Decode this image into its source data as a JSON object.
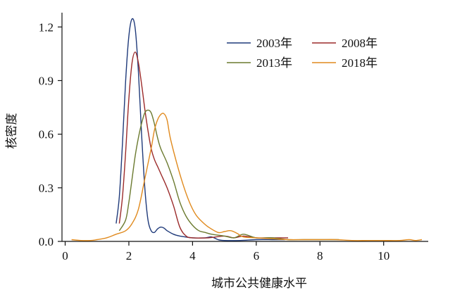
{
  "chart_data": {
    "type": "line",
    "title": "",
    "xlabel": "城市公共健康水平",
    "ylabel": "核密度",
    "xlim": [
      -0.1,
      11.4
    ],
    "ylim": [
      0,
      1.28
    ],
    "xticks": [
      0,
      2,
      4,
      6,
      8,
      10
    ],
    "xtick_labels": [
      "0",
      "2",
      "4",
      "6",
      "8",
      "10"
    ],
    "yticks": [
      0,
      0.3,
      0.6,
      0.9,
      1.2
    ],
    "ytick_labels": [
      "0.0",
      "0.3",
      "0.6",
      "0.9",
      "1.2"
    ],
    "grid": false,
    "legend_position": "top-right",
    "series": [
      {
        "name": "2003年",
        "color": "#1f3a7a",
        "points": [
          [
            1.6,
            0.1
          ],
          [
            1.7,
            0.25
          ],
          [
            1.8,
            0.55
          ],
          [
            1.9,
            0.9
          ],
          [
            2.0,
            1.15
          ],
          [
            2.1,
            1.245
          ],
          [
            2.2,
            1.19
          ],
          [
            2.3,
            0.95
          ],
          [
            2.4,
            0.6
          ],
          [
            2.5,
            0.3
          ],
          [
            2.6,
            0.12
          ],
          [
            2.7,
            0.06
          ],
          [
            2.8,
            0.05
          ],
          [
            2.9,
            0.07
          ],
          [
            3.0,
            0.08
          ],
          [
            3.1,
            0.075
          ],
          [
            3.2,
            0.06
          ],
          [
            3.4,
            0.04
          ],
          [
            3.6,
            0.03
          ],
          [
            4.0,
            0.02
          ],
          [
            4.4,
            0.02
          ],
          [
            4.6,
            0.025
          ],
          [
            4.8,
            0.01
          ],
          [
            5.0,
            0.005
          ],
          [
            5.5,
            0.005
          ],
          [
            6.0,
            0.01
          ],
          [
            6.5,
            0.01
          ],
          [
            6.9,
            0.01
          ]
        ]
      },
      {
        "name": "2008年",
        "color": "#9b2a2a",
        "points": [
          [
            1.7,
            0.1
          ],
          [
            1.8,
            0.25
          ],
          [
            1.9,
            0.5
          ],
          [
            2.0,
            0.8
          ],
          [
            2.1,
            1.0
          ],
          [
            2.2,
            1.06
          ],
          [
            2.3,
            1.0
          ],
          [
            2.4,
            0.88
          ],
          [
            2.5,
            0.74
          ],
          [
            2.6,
            0.62
          ],
          [
            2.7,
            0.52
          ],
          [
            2.8,
            0.46
          ],
          [
            2.9,
            0.42
          ],
          [
            3.0,
            0.38
          ],
          [
            3.2,
            0.3
          ],
          [
            3.4,
            0.2
          ],
          [
            3.6,
            0.08
          ],
          [
            3.8,
            0.03
          ],
          [
            4.0,
            0.02
          ],
          [
            4.5,
            0.02
          ],
          [
            5.0,
            0.03
          ],
          [
            5.3,
            0.02
          ],
          [
            5.6,
            0.03
          ],
          [
            6.0,
            0.02
          ],
          [
            6.5,
            0.02
          ],
          [
            7.0,
            0.02
          ]
        ]
      },
      {
        "name": "2013年",
        "color": "#6b7a2f",
        "points": [
          [
            1.7,
            0.06
          ],
          [
            1.9,
            0.12
          ],
          [
            2.0,
            0.22
          ],
          [
            2.1,
            0.35
          ],
          [
            2.2,
            0.48
          ],
          [
            2.3,
            0.58
          ],
          [
            2.4,
            0.66
          ],
          [
            2.5,
            0.72
          ],
          [
            2.6,
            0.735
          ],
          [
            2.7,
            0.72
          ],
          [
            2.8,
            0.66
          ],
          [
            2.9,
            0.58
          ],
          [
            3.0,
            0.52
          ],
          [
            3.2,
            0.44
          ],
          [
            3.4,
            0.34
          ],
          [
            3.6,
            0.22
          ],
          [
            3.8,
            0.14
          ],
          [
            4.0,
            0.09
          ],
          [
            4.2,
            0.06
          ],
          [
            4.4,
            0.05
          ],
          [
            4.6,
            0.04
          ],
          [
            5.0,
            0.03
          ],
          [
            5.3,
            0.02
          ],
          [
            5.6,
            0.04
          ],
          [
            6.0,
            0.02
          ],
          [
            6.5,
            0.02
          ],
          [
            7.0,
            0.01
          ],
          [
            7.5,
            0.01
          ],
          [
            8.0,
            0.01
          ],
          [
            8.6,
            0.01
          ]
        ]
      },
      {
        "name": "2018年",
        "color": "#e08a1e",
        "points": [
          [
            0.2,
            0.01
          ],
          [
            0.5,
            0.005
          ],
          [
            0.8,
            0.005
          ],
          [
            1.0,
            0.01
          ],
          [
            1.3,
            0.02
          ],
          [
            1.6,
            0.04
          ],
          [
            1.9,
            0.06
          ],
          [
            2.1,
            0.1
          ],
          [
            2.3,
            0.18
          ],
          [
            2.5,
            0.35
          ],
          [
            2.7,
            0.52
          ],
          [
            2.8,
            0.62
          ],
          [
            2.9,
            0.68
          ],
          [
            3.0,
            0.71
          ],
          [
            3.1,
            0.715
          ],
          [
            3.2,
            0.68
          ],
          [
            3.3,
            0.58
          ],
          [
            3.5,
            0.44
          ],
          [
            3.7,
            0.32
          ],
          [
            3.9,
            0.22
          ],
          [
            4.1,
            0.15
          ],
          [
            4.3,
            0.11
          ],
          [
            4.5,
            0.08
          ],
          [
            4.8,
            0.05
          ],
          [
            5.0,
            0.055
          ],
          [
            5.2,
            0.06
          ],
          [
            5.4,
            0.045
          ],
          [
            5.6,
            0.025
          ],
          [
            6.0,
            0.02
          ],
          [
            6.5,
            0.015
          ],
          [
            7.0,
            0.01
          ],
          [
            7.5,
            0.01
          ],
          [
            8.0,
            0.01
          ],
          [
            8.5,
            0.01
          ],
          [
            9.0,
            0.005
          ],
          [
            9.5,
            0.005
          ],
          [
            10.0,
            0.005
          ],
          [
            10.5,
            0.005
          ],
          [
            10.8,
            0.01
          ],
          [
            11.0,
            0.005
          ],
          [
            11.2,
            0.01
          ]
        ]
      }
    ]
  }
}
